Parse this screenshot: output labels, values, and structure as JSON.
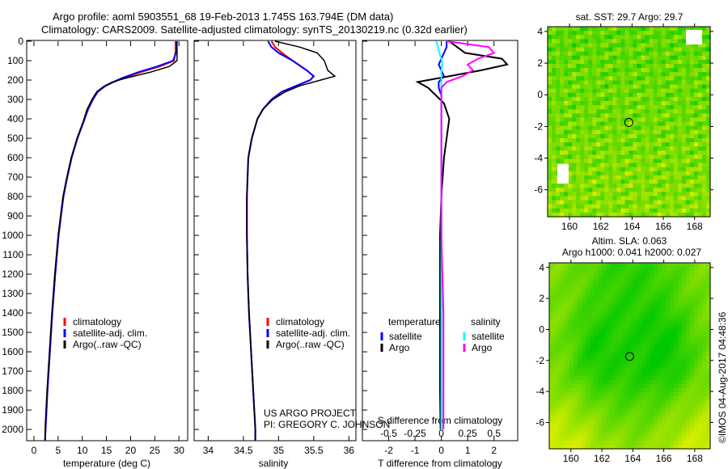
{
  "title": {
    "line1": "Argo profile: aoml 5903551_68 19-Feb-2013 1.745S 163.794E (DM data)",
    "line2": "Climatology: CARS2009. Satellite-adjusted climatology: synTS_20130219.nc (0.32d earlier)"
  },
  "colors": {
    "climatology": "#ff0000",
    "satellite": "#0000ff",
    "argo": "#000000",
    "sal_satellite": "#00ffff",
    "sal_argo": "#ff00ff"
  },
  "chart_data": [
    {
      "type": "line",
      "name": "temperature",
      "xlabel": "temperature (deg C)",
      "xlim": [
        -1.5,
        31.8
      ],
      "ylim": [
        2058,
        0
      ],
      "xticks": [
        0,
        5,
        10,
        15,
        20,
        25,
        30
      ],
      "yticks": [
        0,
        100,
        200,
        300,
        400,
        500,
        600,
        700,
        800,
        900,
        1000,
        1100,
        1200,
        1300,
        1400,
        1500,
        1600,
        1700,
        1800,
        1900,
        2000
      ],
      "legend": [
        "climatology",
        "satellite-adj. clim.",
        "Argo(..raw -QC)"
      ],
      "depth": [
        0,
        50,
        100,
        130,
        160,
        190,
        210,
        230,
        260,
        300,
        350,
        420,
        500,
        600,
        700,
        800,
        900,
        1000,
        1200,
        1400,
        1600,
        1800,
        2000,
        2058
      ],
      "series": [
        {
          "name": "climatology",
          "values": [
            29.3,
            29.3,
            29.0,
            26,
            22,
            18.5,
            16.5,
            14.8,
            13.2,
            12.2,
            11.2,
            10.2,
            9.0,
            7.8,
            6.9,
            6.1,
            5.6,
            5.1,
            4.4,
            3.8,
            3.3,
            2.8,
            2.4,
            2.3
          ]
        },
        {
          "name": "satellite-adj. clim.",
          "values": [
            29.5,
            29.5,
            28.8,
            25.5,
            21.5,
            18.2,
            16.4,
            14.8,
            13.2,
            12.2,
            11.2,
            10.2,
            9.0,
            7.8,
            6.9,
            6.1,
            5.6,
            5.1,
            4.4,
            3.8,
            3.3,
            2.8,
            2.4,
            2.3
          ]
        },
        {
          "name": "Argo(..raw -QC)",
          "values": [
            29.6,
            29.6,
            29.6,
            28,
            24,
            19,
            16.2,
            14.6,
            13.0,
            12.0,
            11.0,
            10.1,
            8.9,
            7.7,
            6.8,
            6.0,
            5.5,
            5.0,
            4.3,
            3.7,
            3.2,
            2.7,
            2.3,
            2.3
          ]
        }
      ]
    },
    {
      "type": "line",
      "name": "salinity",
      "xlabel": "salinity",
      "xlim": [
        33.8,
        36.1
      ],
      "xticks": [
        34,
        34.5,
        35,
        35.5,
        36
      ],
      "legend": [
        "climatology",
        "satellite-adj. clim.",
        "Argo(..raw -QC)"
      ],
      "depth": [
        0,
        30,
        60,
        100,
        150,
        180,
        200,
        230,
        260,
        300,
        350,
        400,
        500,
        600,
        800,
        1000,
        1200,
        1400,
        1600,
        1800,
        2000,
        2058
      ],
      "series": [
        {
          "name": "climatology",
          "values": [
            34.9,
            34.95,
            35.05,
            35.2,
            35.4,
            35.5,
            35.45,
            35.25,
            35.05,
            34.9,
            34.78,
            34.7,
            34.62,
            34.57,
            34.55,
            34.55,
            34.56,
            34.58,
            34.61,
            34.64,
            34.67,
            34.67
          ]
        },
        {
          "name": "satellite-adj. clim.",
          "values": [
            34.85,
            34.9,
            35.0,
            35.2,
            35.4,
            35.5,
            35.45,
            35.25,
            35.05,
            34.9,
            34.78,
            34.7,
            34.62,
            34.57,
            34.55,
            34.55,
            34.56,
            34.58,
            34.61,
            34.64,
            34.67,
            34.67
          ]
        },
        {
          "name": "Argo(..raw -QC)",
          "values": [
            34.95,
            35.3,
            35.55,
            35.65,
            35.7,
            35.8,
            35.6,
            35.3,
            35.1,
            34.92,
            34.78,
            34.7,
            34.62,
            34.57,
            34.55,
            34.55,
            34.56,
            34.58,
            34.61,
            34.64,
            34.67,
            34.67
          ]
        }
      ],
      "annotations": [
        "US ARGO PROJECT",
        "PI: GREGORY C. JOHNSON"
      ]
    },
    {
      "type": "line",
      "name": "difference",
      "xlabel": "T difference from climatology",
      "xlabel2": "S difference from climatology",
      "xlim": [
        -3,
        2.9
      ],
      "xticks": [
        -2,
        -1,
        0,
        1,
        2
      ],
      "xticks2": [
        -0.5,
        -0.25,
        0,
        0.25,
        0.5
      ],
      "legend": {
        "temperature": "temperature",
        "salinity": "salinity",
        "satellite": "satellite",
        "argo": "Argo"
      },
      "depth": [
        0,
        30,
        60,
        90,
        120,
        150,
        180,
        210,
        240,
        280,
        320,
        400,
        500,
        600,
        800,
        1000,
        1400,
        1800,
        2000
      ],
      "series": [
        {
          "name": "T satellite",
          "values": [
            0.2,
            0.2,
            0.1,
            0,
            -0.1,
            0,
            0.1,
            -0.1,
            -0.1,
            0,
            0,
            0,
            0,
            0,
            0,
            0,
            0,
            0,
            0
          ]
        },
        {
          "name": "T Argo",
          "values": [
            0.3,
            0.6,
            0.9,
            2.3,
            2.5,
            1.5,
            0.3,
            -0.9,
            -0.5,
            -0.2,
            0.1,
            0.3,
            0.2,
            0.1,
            0,
            -0.05,
            -0.05,
            -0.05,
            -0.03
          ]
        },
        {
          "name": "S satellite",
          "values": [
            -0.05,
            -0.03,
            -0.02,
            0,
            0.01,
            0,
            0,
            0,
            0,
            0,
            0,
            0,
            0,
            0,
            0,
            0,
            0,
            0,
            0
          ]
        },
        {
          "name": "S Argo",
          "values": [
            0.05,
            0.45,
            0.5,
            0.35,
            0.25,
            0.3,
            0.2,
            0.05,
            0,
            0,
            0,
            0,
            0,
            0,
            0,
            0,
            0.02,
            0.02,
            0.02
          ]
        }
      ]
    },
    {
      "type": "heatmap",
      "name": "sst-map",
      "title": "sat. SST: 29.7  Argo: 29.7",
      "xticks": [
        160,
        162,
        164,
        166,
        168
      ],
      "yticks": [
        4,
        2,
        0,
        -2,
        -4,
        -6
      ],
      "xlim": [
        158.6,
        169.0
      ],
      "ylim": [
        -7.7,
        4.3
      ],
      "marker": [
        163.794,
        -1.745
      ]
    },
    {
      "type": "heatmap",
      "name": "sla-map",
      "title": "Altim. SLA: 0.063",
      "subtitle": "Argo h1000: 0.041 h2000: 0.027",
      "xticks": [
        160,
        162,
        164,
        166,
        168
      ],
      "yticks": [
        4,
        2,
        0,
        -2,
        -4,
        -6
      ],
      "xlim": [
        158.6,
        169.0
      ],
      "ylim": [
        -7.7,
        4.3
      ],
      "marker": [
        163.794,
        -1.745
      ]
    }
  ],
  "credit": "©IMOS 04-Aug-2017 04:48:36"
}
